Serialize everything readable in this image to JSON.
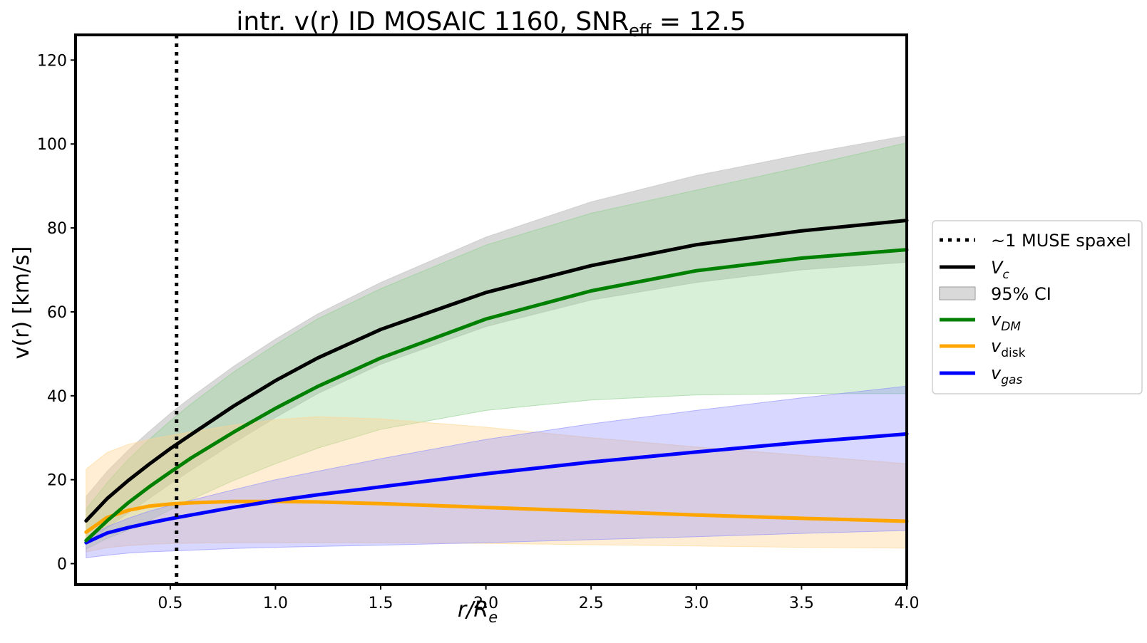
{
  "chart_data": {
    "type": "line",
    "title": {
      "main": "intr. v(r) ID MOSAIC 1160, SNR",
      "sub": "eff",
      "tail": " = 12.5"
    },
    "xlabel": {
      "base": "r/R",
      "sub": "e"
    },
    "ylabel": "v(r) [km/s]",
    "xlim": [
      0.05,
      4.0
    ],
    "ylim": [
      -5,
      126
    ],
    "xticks": [
      0.5,
      1.0,
      1.5,
      2.0,
      2.5,
      3.0,
      3.5,
      4.0
    ],
    "xtick_labels": [
      "0.5",
      "1.0",
      "1.5",
      "2.0",
      "2.5",
      "3.0",
      "3.5",
      "4.0"
    ],
    "yticks": [
      0,
      20,
      40,
      60,
      80,
      100,
      120
    ],
    "ytick_labels": [
      "0",
      "20",
      "40",
      "60",
      "80",
      "100",
      "120"
    ],
    "grid": false,
    "legend_position": "outside-right",
    "vline": {
      "x": 0.53,
      "name": "~1 MUSE spaxel",
      "color": "#000000"
    },
    "x": [
      0.1,
      0.2,
      0.3,
      0.4,
      0.5,
      0.6,
      0.8,
      1.0,
      1.2,
      1.5,
      2.0,
      2.5,
      3.0,
      3.5,
      4.0
    ],
    "series": [
      {
        "name": "V",
        "sub": "c",
        "italic": true,
        "key": "vc",
        "color": "#000000",
        "band_color": "#bfbfbf",
        "values": [
          10.2,
          15.5,
          19.8,
          23.7,
          27.4,
          30.8,
          37.5,
          43.6,
          49.0,
          55.8,
          64.6,
          71.0,
          76.0,
          79.3,
          81.8
        ],
        "lower": [
          4.5,
          8.5,
          12.0,
          15.5,
          19.0,
          22.3,
          28.7,
          34.8,
          40.5,
          47.5,
          56.5,
          62.8,
          67.0,
          70.0,
          71.8
        ],
        "upper": [
          16.0,
          22.0,
          27.0,
          31.5,
          35.8,
          39.7,
          47.0,
          53.5,
          59.5,
          67.0,
          77.8,
          86.2,
          92.5,
          97.5,
          102.0
        ]
      },
      {
        "name": "v",
        "sub": "DM",
        "italic": true,
        "key": "vdm",
        "color": "#008000",
        "band_color": "#8fd18f",
        "values": [
          5.5,
          10.2,
          14.5,
          18.3,
          21.8,
          25.2,
          31.3,
          37.0,
          42.2,
          49.0,
          58.3,
          65.0,
          69.8,
          72.8,
          74.8
        ],
        "lower": [
          3.5,
          6.0,
          8.0,
          10.3,
          12.8,
          15.3,
          19.8,
          23.8,
          27.5,
          32.0,
          36.5,
          39.0,
          40.2,
          40.5,
          40.5
        ],
        "upper": [
          13.0,
          19.3,
          24.8,
          29.6,
          34.0,
          38.1,
          45.6,
          52.2,
          58.3,
          65.5,
          75.9,
          83.5,
          89.0,
          94.5,
          100.3
        ]
      },
      {
        "name": "v",
        "sub": "disk",
        "italic": false,
        "key": "vdisk",
        "color": "#ffa500",
        "band_color": "#ffd590",
        "values": [
          7.5,
          11.0,
          12.7,
          13.7,
          14.2,
          14.5,
          14.8,
          14.8,
          14.7,
          14.3,
          13.4,
          12.5,
          11.6,
          10.8,
          10.1
        ],
        "lower": [
          2.8,
          3.8,
          4.3,
          4.6,
          4.8,
          4.9,
          5.0,
          5.0,
          5.0,
          5.0,
          4.8,
          4.5,
          4.2,
          3.9,
          3.7
        ],
        "upper": [
          22.5,
          26.5,
          28.4,
          29.6,
          30.5,
          31.4,
          33.0,
          34.3,
          35.0,
          34.5,
          32.5,
          30.0,
          27.8,
          25.8,
          23.8
        ]
      },
      {
        "name": "v",
        "sub": "gas",
        "italic": true,
        "key": "vgas",
        "color": "#0000ff",
        "band_color": "#8c8cff",
        "values": [
          5.0,
          7.3,
          8.6,
          9.7,
          10.7,
          11.6,
          13.4,
          15.0,
          16.4,
          18.3,
          21.4,
          24.2,
          26.6,
          28.9,
          30.9
        ],
        "lower": [
          1.4,
          2.0,
          2.5,
          2.8,
          3.0,
          3.2,
          3.6,
          3.9,
          4.1,
          4.4,
          5.0,
          5.7,
          6.4,
          7.2,
          7.9
        ],
        "upper": [
          6.0,
          8.8,
          10.8,
          12.5,
          13.9,
          15.1,
          17.6,
          20.0,
          22.0,
          25.0,
          29.6,
          33.3,
          36.5,
          39.5,
          42.3
        ]
      }
    ],
    "ci_legend": {
      "label": "95% CI",
      "color": "#bfbfbf"
    }
  }
}
